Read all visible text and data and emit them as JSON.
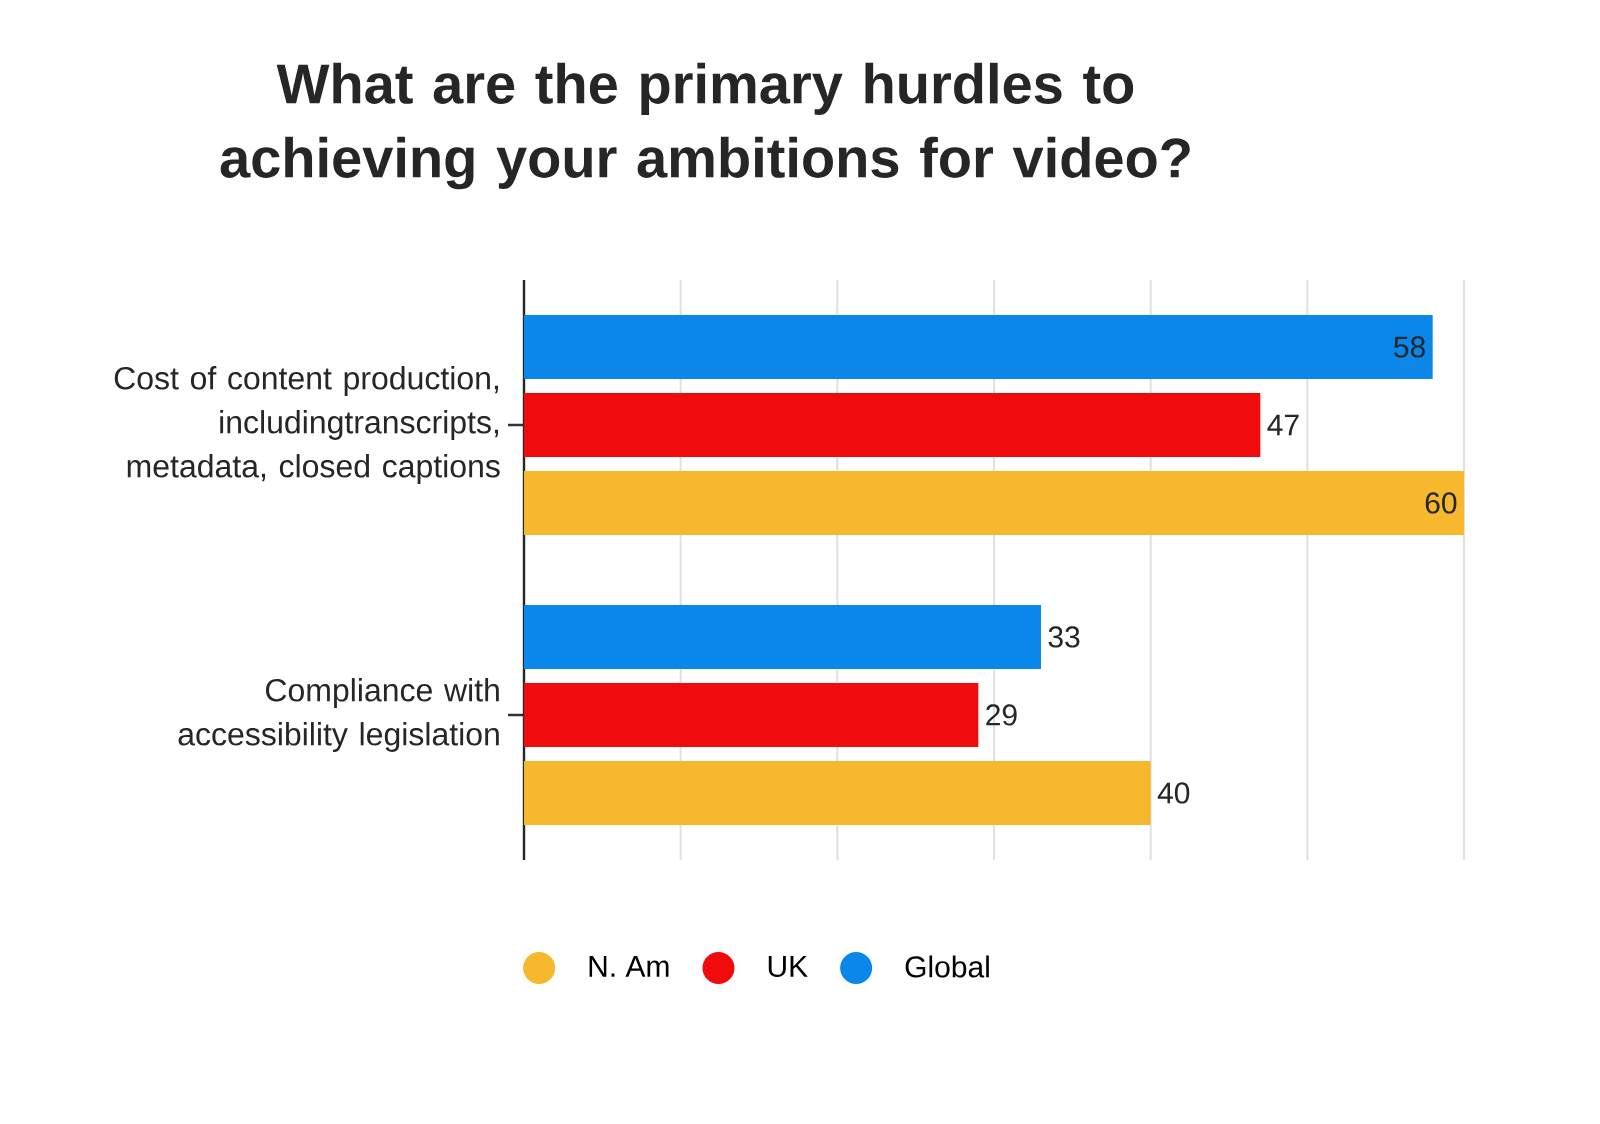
{
  "chart_data": {
    "type": "bar",
    "orientation": "horizontal",
    "title": "What are the primary hurdles to achieving your ambitions for video?",
    "categories": [
      "Cost of content production, includingtranscripts, metadata, closed captions",
      "Compliance with accessibility legislation"
    ],
    "series": [
      {
        "name": "N. Am",
        "color": "#f6b82d",
        "values": [
          60,
          40
        ]
      },
      {
        "name": "UK",
        "color": "#f00c0c",
        "values": [
          47,
          29
        ]
      },
      {
        "name": "Global",
        "color": "#0b87ea",
        "values": [
          58,
          33
        ]
      }
    ],
    "xlim": [
      0,
      60
    ],
    "xticks": [
      {
        "value": 0,
        "label": null
      },
      {
        "value": 10,
        "label": null
      },
      {
        "value": 20,
        "label": null
      },
      {
        "value": 30,
        "label": null
      },
      {
        "value": 40,
        "label": null
      },
      {
        "value": 50,
        "label": null
      },
      {
        "value": 60,
        "label": null
      }
    ],
    "tick_labels": "y",
    "grid": "x",
    "legend": "bottom",
    "data_labels": true
  }
}
